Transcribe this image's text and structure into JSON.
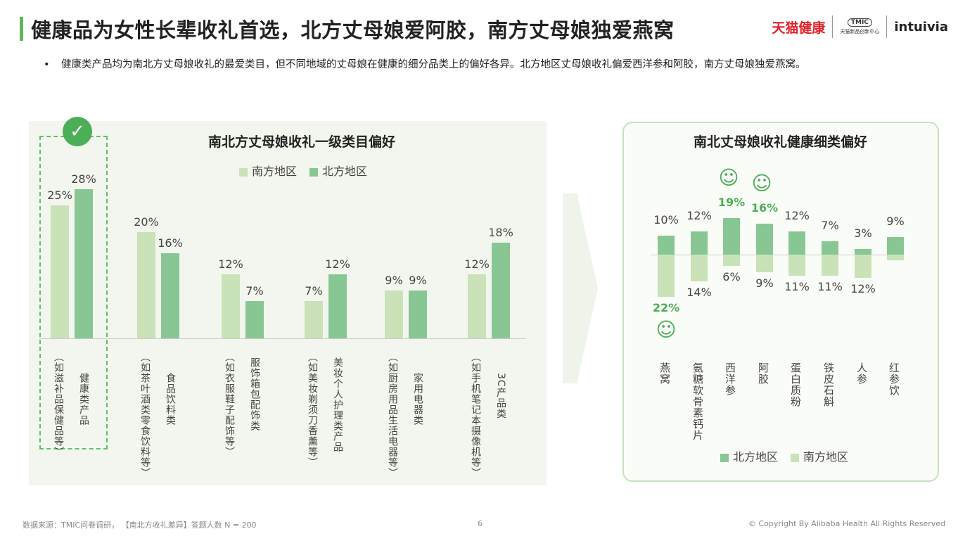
{
  "header": {
    "title": "健康品为女性长辈收礼首选，北方丈母娘爱阿胶，南方丈母娘独爱燕窝",
    "logos": [
      "天猫健康",
      "TMIC",
      "天猫新品创新中心",
      "intuivia"
    ]
  },
  "bullet": "健康类产品均为南北方丈母娘收礼的最爱类目，但不同地域的丈母娘在健康的细分品类上的偏好各异。北方地区丈母娘收礼偏爱西洋参和阿胶，南方丈母娘独爱燕窝。",
  "chart_data": [
    {
      "type": "bar",
      "title": "南北方丈母娘收礼一级类目偏好",
      "legend": [
        "南方地区",
        "北方地区"
      ],
      "legend_position": "top",
      "categories": [
        {
          "name": "健康类产品",
          "note": "（如滋补品保健品等）"
        },
        {
          "name": "食品饮料类",
          "note": "（如茶叶酒类零食饮料等）"
        },
        {
          "name": "服饰箱包配饰类",
          "note": "（如衣服鞋子配饰等）"
        },
        {
          "name": "美妆个人护理类产品",
          "note": "（如美妆剃须刀香薰等）"
        },
        {
          "name": "家用电器类",
          "note": "（如厨房用品生活电器等）"
        },
        {
          "name": "3C产品类",
          "note": "（如手机笔记本摄像机等）"
        }
      ],
      "series": [
        {
          "name": "南方地区",
          "values": [
            25,
            20,
            12,
            7,
            9,
            12
          ],
          "labels": [
            "25%",
            "20%",
            "12%",
            "7%",
            "9%",
            "12%"
          ]
        },
        {
          "name": "北方地区",
          "values": [
            28,
            16,
            7,
            12,
            9,
            18
          ],
          "labels": [
            "28%",
            "16%",
            "7%",
            "12%",
            "9%",
            "18%"
          ]
        }
      ],
      "highlight_category": "健康类产品",
      "ylim": [
        0,
        30
      ]
    },
    {
      "type": "bar",
      "title": "南北丈母娘收礼健康细类偏好",
      "legend": [
        "北方地区",
        "南方地区"
      ],
      "legend_position": "bottom",
      "categories": [
        "燕窝",
        "氨糖软骨素钙片",
        "西洋参",
        "阿胶",
        "蛋白质粉",
        "铁皮石斛",
        "人参",
        "红参饮"
      ],
      "series": [
        {
          "name": "北方地区",
          "direction": "up",
          "values": [
            10,
            12,
            19,
            16,
            12,
            7,
            3,
            9
          ],
          "labels": [
            "10%",
            "12%",
            "19%",
            "16%",
            "12%",
            "7%",
            "3%",
            "9%"
          ],
          "highlight": [
            false,
            false,
            true,
            true,
            false,
            false,
            false,
            false
          ]
        },
        {
          "name": "南方地区",
          "direction": "down",
          "values": [
            22,
            14,
            6,
            9,
            11,
            11,
            12,
            3
          ],
          "labels": [
            "22%",
            "14%",
            "6%",
            "9%",
            "11%",
            "11%",
            "12%",
            ""
          ],
          "highlight": [
            true,
            false,
            false,
            false,
            false,
            false,
            false,
            false
          ]
        }
      ]
    }
  ],
  "colors": {
    "south": "#c9e2b8",
    "north": "#88c793",
    "accent": "#4cae56"
  },
  "footer": {
    "source": "数据来源：TMIC问卷调研，  【南北方收礼差异】答题人数 N = 200",
    "page": "6",
    "copyright": "© Copyright By Alibaba Health All Rights Reserved"
  }
}
